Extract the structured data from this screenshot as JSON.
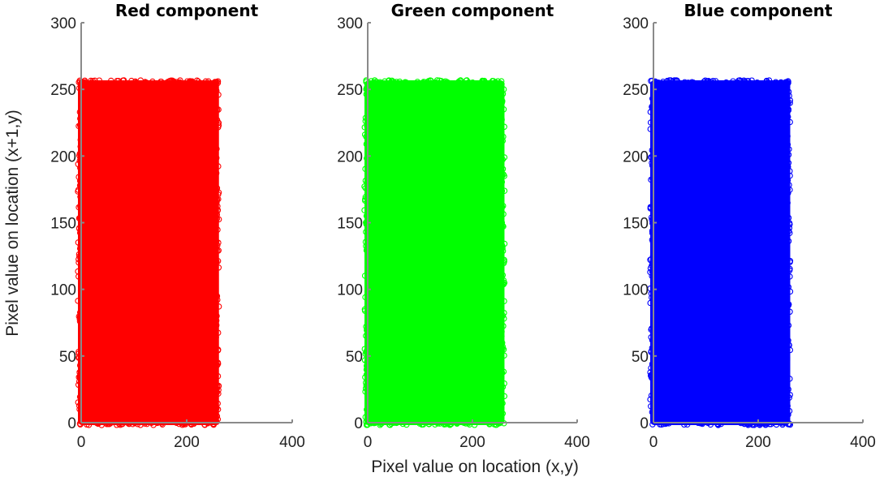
{
  "chart_data": [
    {
      "type": "scatter",
      "title": "Red component",
      "color": "#ff0000",
      "xlim": [
        0,
        400
      ],
      "ylim": [
        0,
        300
      ],
      "xticks": [
        0,
        200,
        400
      ],
      "yticks": [
        0,
        50,
        100,
        150,
        200,
        250,
        300
      ],
      "x_range": [
        0,
        255
      ],
      "y_range": [
        0,
        255
      ]
    },
    {
      "type": "scatter",
      "title": "Green component",
      "color": "#00ff00",
      "xlim": [
        0,
        400
      ],
      "ylim": [
        0,
        300
      ],
      "xticks": [
        0,
        200,
        400
      ],
      "yticks": [
        0,
        50,
        100,
        150,
        200,
        250,
        300
      ],
      "x_range": [
        0,
        255
      ],
      "y_range": [
        0,
        255
      ]
    },
    {
      "type": "scatter",
      "title": "Blue component",
      "color": "#0000ff",
      "xlim": [
        0,
        400
      ],
      "ylim": [
        0,
        300
      ],
      "xticks": [
        0,
        200,
        400
      ],
      "yticks": [
        0,
        50,
        100,
        150,
        200,
        250,
        300
      ],
      "x_range": [
        0,
        255
      ],
      "y_range": [
        0,
        255
      ]
    }
  ],
  "xlabel": "Pixel value on location (x,y)",
  "ylabel": "Pixel value on location (x+1,y)"
}
